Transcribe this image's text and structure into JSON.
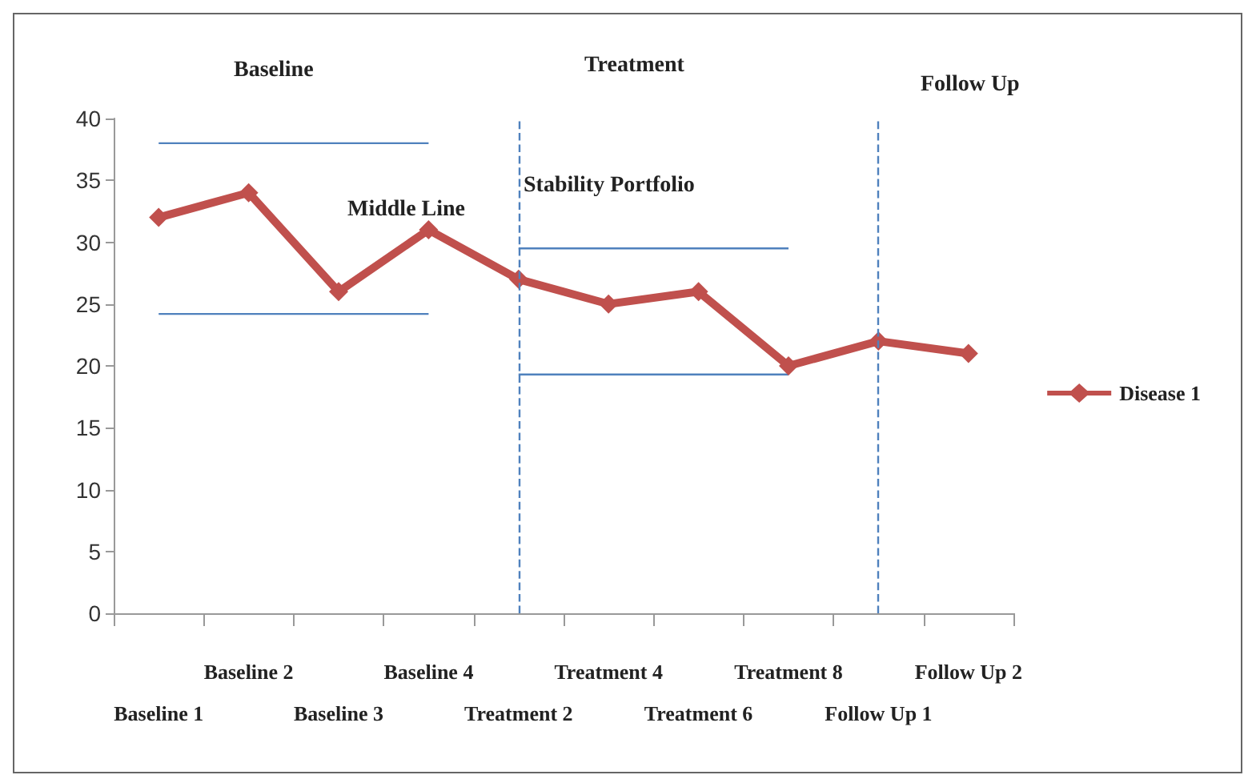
{
  "chart_data": {
    "type": "line",
    "categories": [
      "Baseline 1",
      "Baseline 2",
      "Baseline 3",
      "Baseline 4",
      "Treatment 2",
      "Treatment 4",
      "Treatment 6",
      "Treatment 8",
      "Follow Up 1",
      "Follow Up 2"
    ],
    "series": [
      {
        "name": "Disease 1",
        "color": "#c0504d",
        "values": [
          32,
          34,
          26,
          31,
          27,
          25,
          26,
          20,
          22,
          21
        ],
        "marker": "diamond"
      },
      {
        "color": "#4f81bd",
        "values": [
          38,
          38,
          38,
          38,
          null,
          null,
          null,
          null,
          null,
          null
        ],
        "marker": "none"
      },
      {
        "color": "#4f81bd",
        "values": [
          24.2,
          24.2,
          24.2,
          24.2,
          null,
          null,
          null,
          null,
          null,
          null
        ],
        "marker": "none"
      },
      {
        "color": "#4f81bd",
        "values": [
          null,
          null,
          null,
          null,
          29.5,
          29.5,
          29.5,
          29.5,
          null,
          null
        ],
        "marker": "none"
      },
      {
        "color": "#4f81bd",
        "values": [
          null,
          null,
          null,
          null,
          19.3,
          19.3,
          19.3,
          19.3,
          null,
          null
        ],
        "marker": "none"
      }
    ],
    "ylim": [
      0,
      40
    ],
    "yticks": [
      0,
      5,
      10,
      15,
      20,
      25,
      30,
      35,
      40
    ],
    "grid": false,
    "legend": "right",
    "ref_lines": [
      {
        "axis": "x",
        "value": "Treatment 2",
        "color": "#4f81bd",
        "line_style": "dashed"
      },
      {
        "axis": "x",
        "value": "Follow Up 1",
        "color": "#4f81bd",
        "line_style": "dashed"
      }
    ],
    "annotations": [
      "Baseline",
      "Treatment",
      "Follow Up",
      "Middle Line",
      "Stability Portfolio"
    ]
  }
}
